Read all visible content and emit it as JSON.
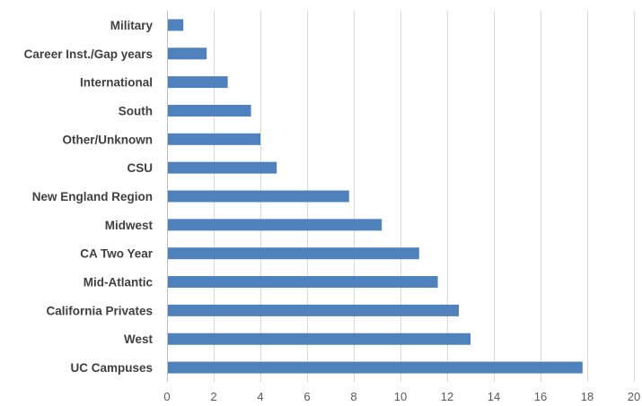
{
  "chart_data": {
    "type": "bar",
    "orientation": "horizontal",
    "title": "",
    "xlabel": "",
    "ylabel": "",
    "categories": [
      "UC Campuses",
      "West",
      "California Privates",
      "Mid-Atlantic",
      "CA Two Year",
      "Midwest",
      "New England Region",
      "CSU",
      "Other/Unknown",
      "South",
      "International",
      "Career Inst./Gap years",
      "Military"
    ],
    "values": [
      17.8,
      13.0,
      12.5,
      11.6,
      10.8,
      9.2,
      7.8,
      4.7,
      4.0,
      3.6,
      2.6,
      1.7,
      0.7
    ],
    "xlim": [
      0,
      20
    ],
    "xticks": [
      0,
      2,
      4,
      6,
      8,
      10,
      12,
      14,
      16,
      18,
      20
    ],
    "grid": true,
    "legend": "none",
    "bar_color": "#4f81bd"
  }
}
